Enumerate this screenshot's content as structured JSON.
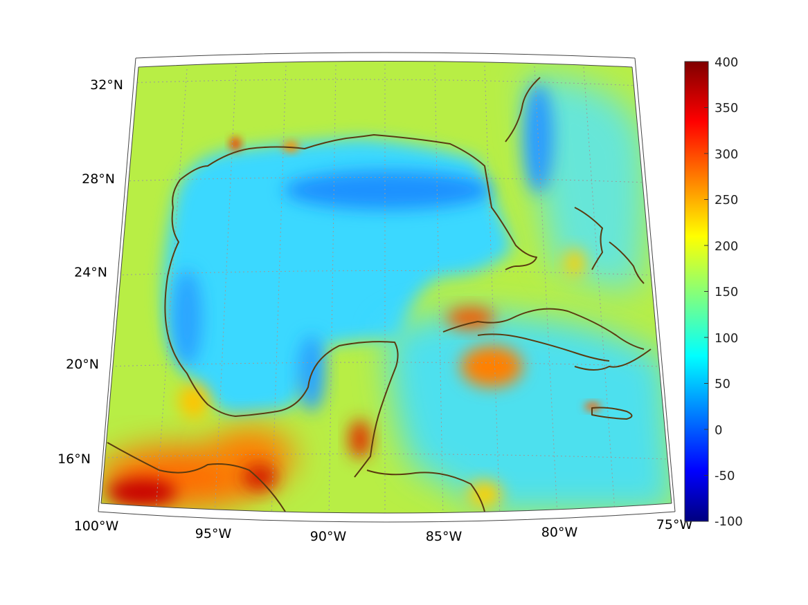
{
  "map": {
    "longitude_labels": [
      "100°W",
      "95°W",
      "90°W",
      "85°W",
      "80°W",
      "75°W"
    ],
    "latitude_labels": [
      "32°N",
      "28°N",
      "24°N",
      "20°N",
      "16°N"
    ],
    "colormap": "jet",
    "colors": {
      "coast": "#5a3a10",
      "open_gulf": "#33d6ff",
      "deep_blue": "#1e90ff",
      "land_green": "#b8f040",
      "high_red": "#e8200a"
    }
  },
  "colorbar": {
    "labels": [
      "400",
      "350",
      "300",
      "250",
      "200",
      "150",
      "100",
      "50",
      "0",
      "-50",
      "-100"
    ],
    "range": [
      -100,
      400
    ]
  }
}
